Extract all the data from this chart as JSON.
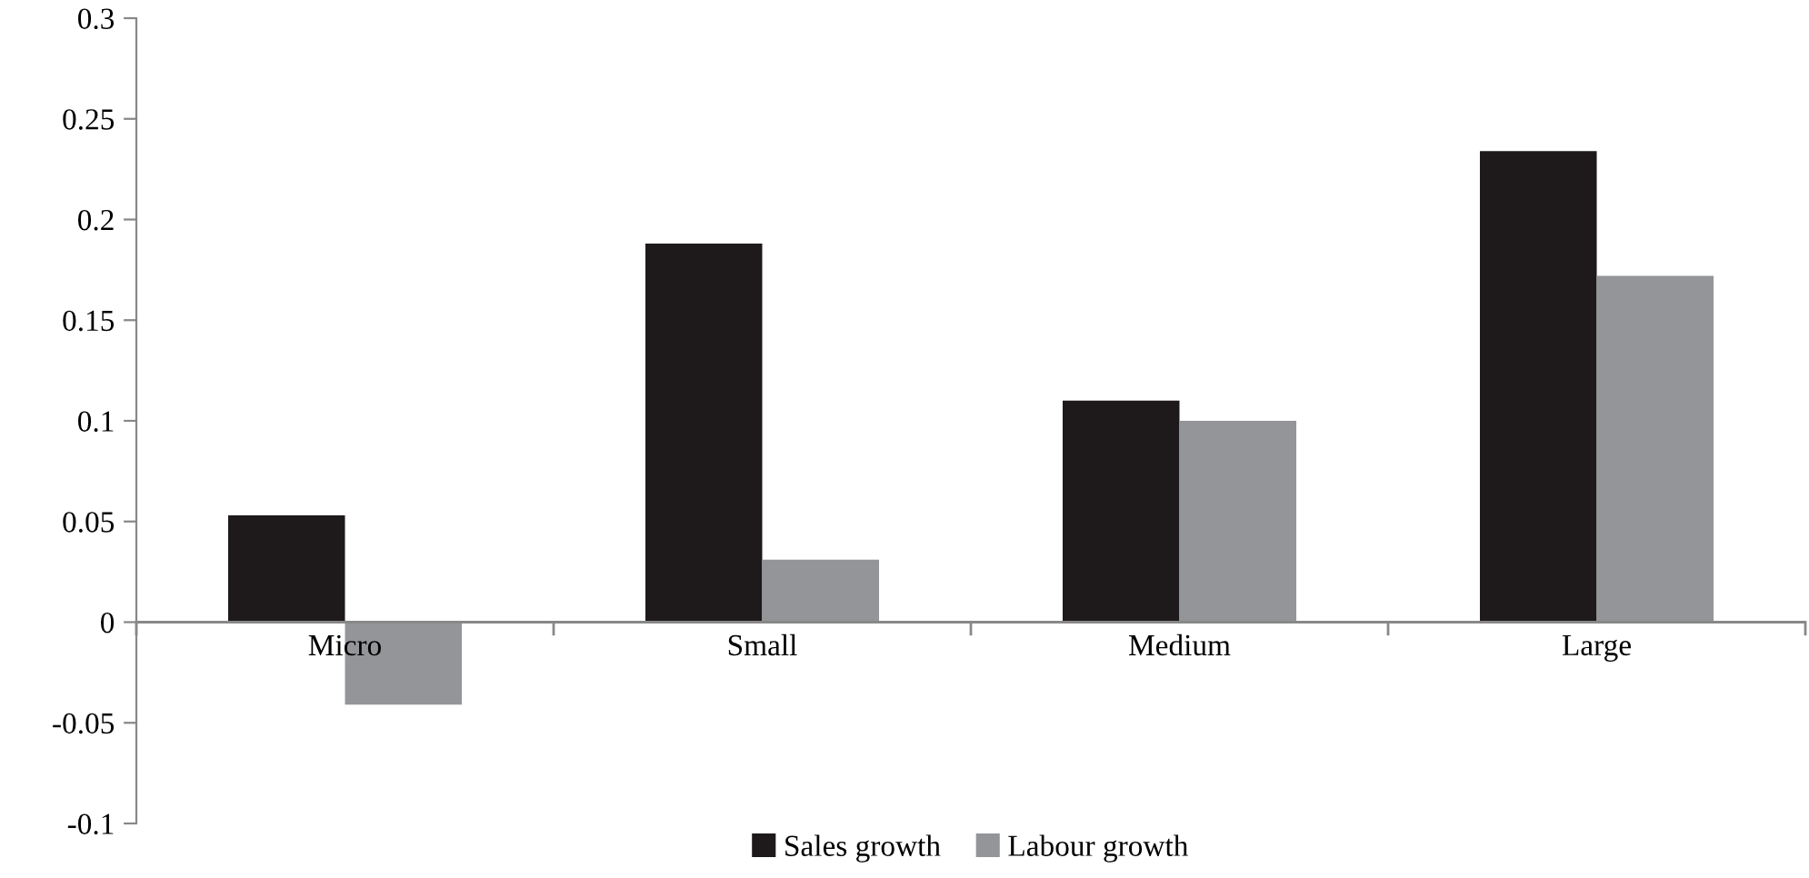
{
  "chart_data": {
    "type": "bar",
    "categories": [
      "Micro",
      "Small",
      "Medium",
      "Large"
    ],
    "series": [
      {
        "name": "Sales growth",
        "color": "#1e1a1b",
        "values": [
          0.053,
          0.188,
          0.11,
          0.234
        ]
      },
      {
        "name": "Labour growth",
        "color": "#939598",
        "values": [
          -0.041,
          0.031,
          0.1,
          0.172
        ]
      }
    ],
    "ylim": [
      -0.1,
      0.3
    ],
    "yticks": [
      {
        "value": -0.1,
        "label": "-0.1"
      },
      {
        "value": -0.05,
        "label": "-0.05"
      },
      0,
      0.05,
      0.1,
      0.15,
      0.2,
      0.25,
      0.3
    ],
    "legend": "bottom",
    "grid": false
  }
}
